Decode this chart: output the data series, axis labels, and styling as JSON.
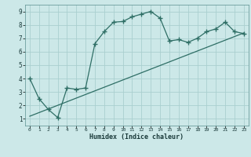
{
  "xlabel": "Humidex (Indice chaleur)",
  "background_color": "#cce8e8",
  "grid_color": "#aacfcf",
  "line_color": "#2e6e65",
  "xlim": [
    -0.5,
    23.5
  ],
  "ylim": [
    0.5,
    9.5
  ],
  "xticks": [
    0,
    1,
    2,
    3,
    4,
    5,
    6,
    7,
    8,
    9,
    10,
    11,
    12,
    13,
    14,
    15,
    16,
    17,
    18,
    19,
    20,
    21,
    22,
    23
  ],
  "yticks": [
    1,
    2,
    3,
    4,
    5,
    6,
    7,
    8,
    9
  ],
  "curve_x": [
    0,
    1,
    2,
    3,
    4,
    5,
    6,
    7,
    8,
    9,
    10,
    11,
    12,
    13,
    14,
    15,
    16,
    17,
    18,
    19,
    20,
    21,
    22,
    23
  ],
  "curve_y": [
    4.0,
    2.5,
    1.7,
    1.1,
    3.3,
    3.2,
    3.3,
    6.6,
    7.5,
    8.2,
    8.25,
    8.6,
    8.8,
    9.0,
    8.5,
    6.8,
    6.9,
    6.7,
    7.0,
    7.5,
    7.7,
    8.2,
    7.5,
    7.35
  ],
  "line_x": [
    0,
    23
  ],
  "line_y": [
    1.2,
    7.4
  ]
}
